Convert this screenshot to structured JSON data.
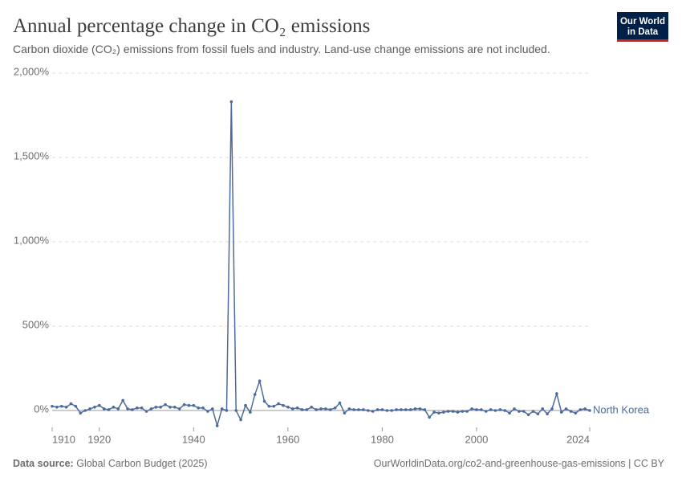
{
  "chart_data": {
    "type": "line",
    "title": "Annual percentage change in CO₂ emissions",
    "subtitle": "Carbon dioxide (CO₂) emissions from fossil fuels and industry. Land-use change emissions are not included.",
    "logo": [
      "Our World",
      "in Data"
    ],
    "source_label": "Data source:",
    "source": "Global Carbon Budget (2025)",
    "url": "OurWorldinData.org/co2-and-greenhouse-gas-emissions | CC BY",
    "x": [
      1910,
      1911,
      1912,
      1913,
      1914,
      1915,
      1916,
      1917,
      1918,
      1919,
      1920,
      1921,
      1922,
      1923,
      1924,
      1925,
      1926,
      1927,
      1928,
      1929,
      1930,
      1931,
      1932,
      1933,
      1934,
      1935,
      1936,
      1937,
      1938,
      1939,
      1940,
      1941,
      1942,
      1943,
      1944,
      1945,
      1946,
      1947,
      1948,
      1949,
      1950,
      1951,
      1952,
      1953,
      1954,
      1955,
      1956,
      1957,
      1958,
      1959,
      1960,
      1961,
      1962,
      1963,
      1964,
      1965,
      1966,
      1967,
      1968,
      1969,
      1970,
      1971,
      1972,
      1973,
      1974,
      1975,
      1976,
      1977,
      1978,
      1979,
      1980,
      1981,
      1982,
      1983,
      1984,
      1985,
      1986,
      1987,
      1988,
      1989,
      1990,
      1991,
      1992,
      1993,
      1994,
      1995,
      1996,
      1997,
      1998,
      1999,
      2000,
      2001,
      2002,
      2003,
      2004,
      2005,
      2006,
      2007,
      2008,
      2009,
      2010,
      2011,
      2012,
      2013,
      2014,
      2015,
      2016,
      2017,
      2018,
      2019,
      2020,
      2021,
      2022,
      2023,
      2024
    ],
    "series": [
      {
        "name": "North Korea",
        "color": "#4c6a9c",
        "values": [
          25,
          20,
          25,
          20,
          40,
          25,
          -15,
          0,
          10,
          20,
          30,
          10,
          5,
          20,
          10,
          60,
          10,
          5,
          15,
          15,
          -5,
          10,
          20,
          20,
          35,
          20,
          20,
          10,
          35,
          30,
          30,
          15,
          15,
          -5,
          10,
          -90,
          10,
          0,
          1830,
          0,
          -55,
          30,
          -10,
          95,
          175,
          55,
          25,
          25,
          40,
          30,
          20,
          10,
          15,
          5,
          5,
          20,
          5,
          10,
          10,
          5,
          15,
          45,
          -15,
          10,
          5,
          5,
          5,
          0,
          -5,
          5,
          5,
          0,
          0,
          5,
          5,
          5,
          5,
          10,
          10,
          5,
          -40,
          -10,
          -15,
          -10,
          -5,
          -5,
          -10,
          -5,
          -5,
          10,
          5,
          5,
          -5,
          5,
          0,
          5,
          0,
          -15,
          10,
          -5,
          -5,
          -25,
          -5,
          -20,
          10,
          -20,
          10,
          100,
          -10,
          10,
          -5,
          -15,
          5,
          10,
          0
        ]
      }
    ],
    "xlim": [
      1910,
      2024
    ],
    "xticks": [
      1910,
      1920,
      1940,
      1960,
      1980,
      2000,
      2024
    ],
    "ylim": [
      -100,
      2000
    ],
    "yticks": [
      {
        "value": 0,
        "label": "0%"
      },
      {
        "value": 500,
        "label": "500%"
      },
      {
        "value": 1000,
        "label": "1,000%"
      },
      {
        "value": 1500,
        "label": "1,500%"
      },
      {
        "value": 2000,
        "label": "2,000%"
      }
    ],
    "grid": true
  }
}
